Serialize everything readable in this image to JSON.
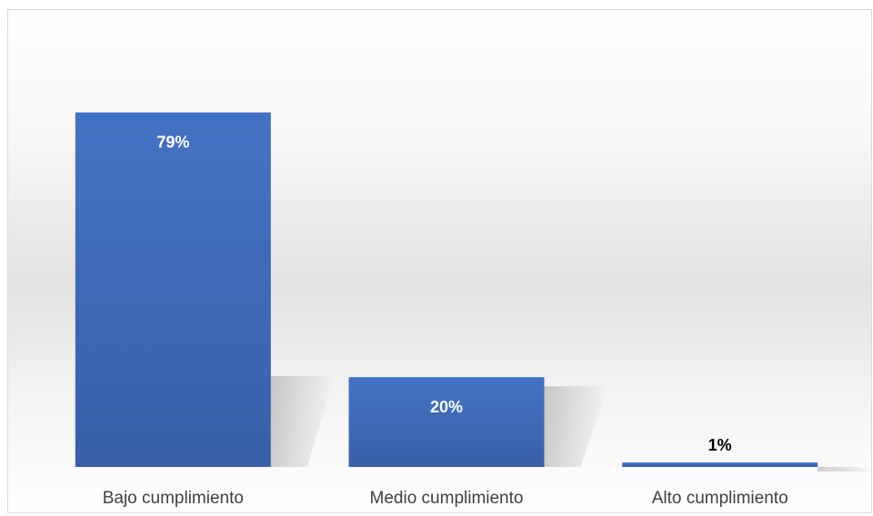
{
  "chart_data": {
    "type": "bar",
    "categories": [
      "Bajo cumplimiento",
      "Medio cumplimiento",
      "Alto cumplimiento"
    ],
    "values": [
      79,
      20,
      1
    ],
    "value_labels": [
      "79%",
      "20%",
      "1%"
    ],
    "title": "",
    "xlabel": "",
    "ylabel": "",
    "ylim": [
      0,
      100
    ],
    "grid": false,
    "legend": "none",
    "colors": {
      "bar": "#4472c4",
      "bar_dark": "#3a62ad",
      "label_inside": "#ffffff",
      "label_outside": "#000000",
      "category_text": "#404040",
      "frame_border": "#d9d9d9"
    }
  }
}
